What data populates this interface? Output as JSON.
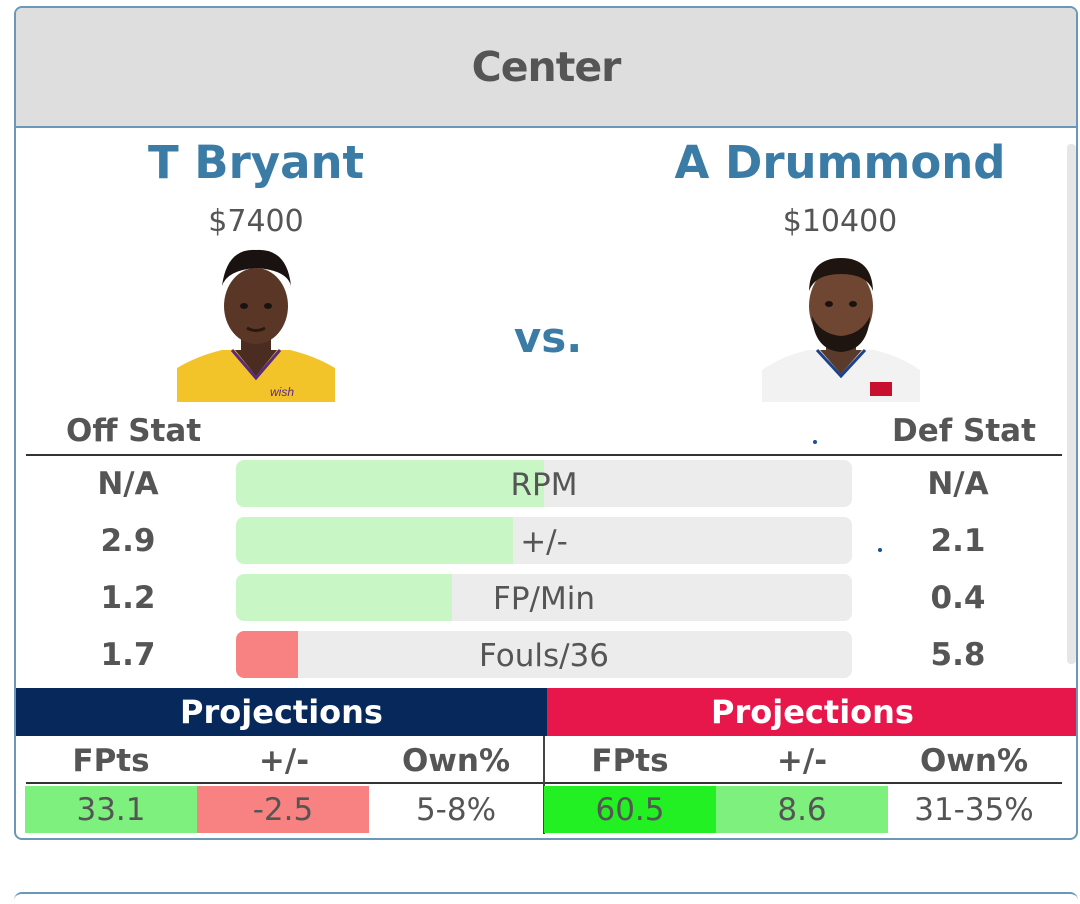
{
  "header": {
    "title": "Center"
  },
  "players": {
    "left": {
      "name": "T Bryant",
      "salary": "$7400"
    },
    "right": {
      "name": "A Drummond",
      "salary": "$10400"
    }
  },
  "vs_label": "vs.",
  "columns": {
    "left": "Off Stat",
    "right": "Def Stat"
  },
  "stats": [
    {
      "label": "RPM",
      "left": "N/A",
      "right": "N/A",
      "fill_fraction": 0.5,
      "fill_type": "good"
    },
    {
      "label": "+/-",
      "left": "2.9",
      "right": "2.1",
      "fill_fraction": 0.45,
      "fill_type": "good"
    },
    {
      "label": "FP/Min",
      "left": "1.2",
      "right": "0.4",
      "fill_fraction": 0.35,
      "fill_type": "good"
    },
    {
      "label": "Fouls/36",
      "left": "1.7",
      "right": "5.8",
      "fill_fraction": 0.1,
      "fill_type": "bad"
    }
  ],
  "projections": {
    "left": {
      "title": "Projections",
      "headers": [
        "FPts",
        "+/-",
        "Own%"
      ],
      "values": [
        "33.1",
        "-2.5",
        "5-8%"
      ],
      "colors": [
        "#7df07d",
        "#f88282",
        "#ffffff"
      ]
    },
    "right": {
      "title": "Projections",
      "headers": [
        "FPts",
        "+/-",
        "Own%"
      ],
      "values": [
        "60.5",
        "8.6",
        "31-35%"
      ],
      "colors": [
        "#22f022",
        "#7df07d",
        "#ffffff"
      ]
    }
  },
  "colors": {
    "accent_blue": "#3a7ca5",
    "left_projection_bg": "#06285a",
    "right_projection_bg": "#e8174b"
  }
}
